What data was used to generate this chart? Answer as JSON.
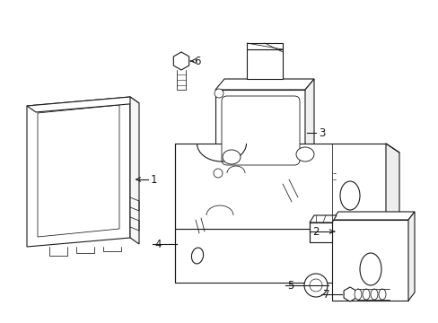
{
  "background_color": "#ffffff",
  "line_color": "#1a1a1a",
  "line_width": 0.8,
  "fig_width": 4.89,
  "fig_height": 3.6,
  "dpi": 100
}
